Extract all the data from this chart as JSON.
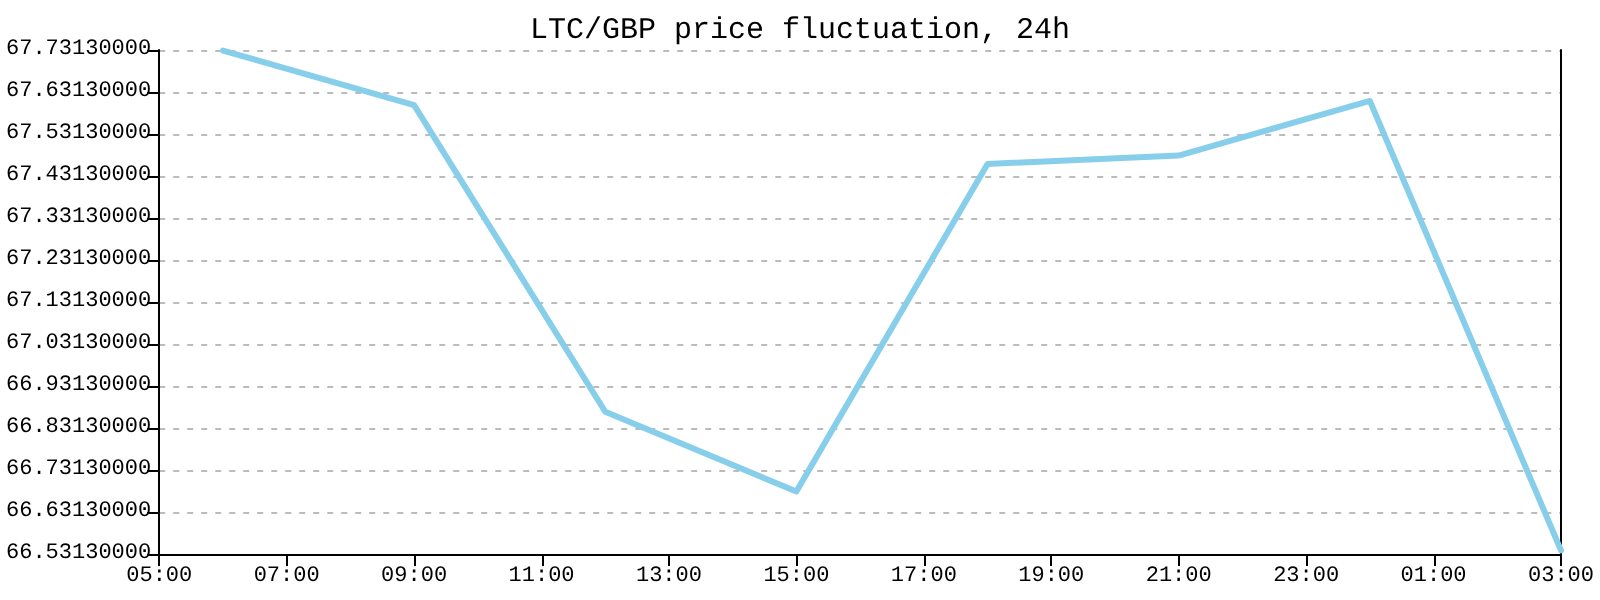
{
  "chart_data": {
    "type": "line",
    "title": "LTC/GBP price fluctuation, 24h",
    "x": [
      "--01-01T06:00",
      "--01-01T09:00",
      "--01-01T12:00",
      "--01-01T15:00",
      "--01-01T18:00",
      "--01-01T21:00",
      "--01-02T00:00",
      "--01-02T03:00"
    ],
    "series": [
      {
        "color": "#87ceeb",
        "values": [
          67.73,
          67.6,
          66.87,
          66.68,
          67.46,
          67.48,
          67.61,
          66.54
        ]
      }
    ],
    "xlim": [
      "--01-01T05:00",
      "--01-02T03:00"
    ],
    "xticks": [
      {
        "value": "--01-01T05:00",
        "label": "05:00"
      },
      {
        "value": "--01-01T07:00",
        "label": "07:00"
      },
      {
        "value": "--01-01T09:00",
        "label": "09:00"
      },
      {
        "value": "--01-01T11:00",
        "label": "11:00"
      },
      {
        "value": "--01-01T13:00",
        "label": "13:00"
      },
      {
        "value": "--01-01T15:00",
        "label": "15:00"
      },
      {
        "value": "--01-01T17:00",
        "label": "17:00"
      },
      {
        "value": "--01-01T19:00",
        "label": "19:00"
      },
      {
        "value": "--01-01T21:00",
        "label": "21:00"
      },
      {
        "value": "--01-01T23:00",
        "label": "23:00"
      },
      {
        "value": "--01-02T01:00",
        "label": "01:00"
      },
      {
        "value": "--01-02T03:00",
        "label": "03:00"
      }
    ],
    "ylim": [
      66.5313,
      67.7313
    ],
    "yticks": [
      {
        "value": 66.5313,
        "label": "66.53130000"
      },
      {
        "value": 66.6313,
        "label": "66.63130000"
      },
      {
        "value": 66.7313,
        "label": "66.73130000"
      },
      {
        "value": 66.8313,
        "label": "66.83130000"
      },
      {
        "value": 66.9313,
        "label": "66.93130000"
      },
      {
        "value": 67.0313,
        "label": "67.03130000"
      },
      {
        "value": 67.1313,
        "label": "67.13130000"
      },
      {
        "value": 67.2313,
        "label": "67.23130000"
      },
      {
        "value": 67.3313,
        "label": "67.33130000"
      },
      {
        "value": 67.4313,
        "label": "67.43130000"
      },
      {
        "value": 67.5313,
        "label": "67.53130000"
      },
      {
        "value": 67.6313,
        "label": "67.63130000"
      },
      {
        "value": 67.7313,
        "label": "67.73130000"
      }
    ],
    "grid": "y",
    "marker": "none",
    "line_style": "solid"
  }
}
